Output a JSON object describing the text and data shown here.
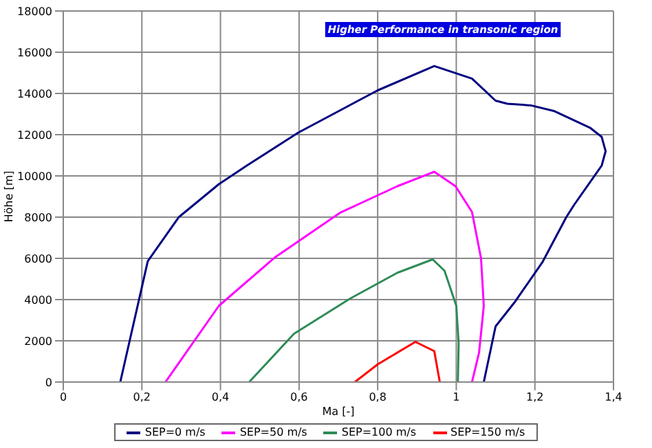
{
  "chart_data": {
    "type": "line",
    "xlabel": "Ma [-]",
    "ylabel": "Höhe [m]",
    "annotations": [
      "Higher Performance in transonic region"
    ],
    "xlim": [
      0,
      1.4
    ],
    "xticks": [
      {
        "value": 0,
        "label": "0"
      },
      {
        "value": 0.2,
        "label": "0,2"
      },
      {
        "value": 0.4,
        "label": "0,4"
      },
      {
        "value": 0.6,
        "label": "0,6"
      },
      {
        "value": 0.8,
        "label": "0,8"
      },
      {
        "value": 1,
        "label": "1"
      },
      {
        "value": 1.2,
        "label": "1,2"
      },
      {
        "value": 1.4,
        "label": "1,4"
      }
    ],
    "ylim": [
      0,
      18000
    ],
    "yticks": [
      0,
      2000,
      4000,
      6000,
      8000,
      10000,
      12000,
      14000,
      16000,
      18000
    ],
    "grid": true,
    "legend": "bottom",
    "marker": "none",
    "line_style": "solid",
    "series": [
      {
        "name": "SEP=0 m/s",
        "color": "#000080",
        "x": [
          0.145,
          0.215,
          0.294,
          0.396,
          0.467,
          0.598,
          0.8,
          0.944,
          1.04,
          1.1,
          1.13,
          1.19,
          1.25,
          1.34,
          1.37,
          1.38,
          1.37,
          1.3,
          1.28,
          1.22,
          1.15,
          1.1,
          1.07
        ],
        "values": [
          0,
          5860,
          8000,
          9600,
          10500,
          12100,
          14150,
          15330,
          14720,
          13650,
          13500,
          13420,
          13140,
          12340,
          11890,
          11200,
          10500,
          8600,
          8000,
          5840,
          3910,
          2700,
          0
        ]
      },
      {
        "name": "SEP=50 m/s",
        "color": "#ff00ff",
        "x": [
          0.26,
          0.396,
          0.54,
          0.706,
          0.85,
          0.944,
          0.998,
          1.04,
          1.063,
          1.07,
          1.058,
          1.04
        ],
        "values": [
          0,
          3700,
          6070,
          8230,
          9500,
          10200,
          9500,
          8250,
          6000,
          3700,
          1430,
          0
        ]
      },
      {
        "name": "SEP=100 m/s",
        "color": "#2e8b57",
        "x": [
          0.473,
          0.587,
          0.73,
          0.85,
          0.94,
          0.97,
          1.0,
          1.006,
          1.004
        ],
        "values": [
          0,
          2340,
          4050,
          5300,
          5950,
          5400,
          3700,
          1900,
          0
        ]
      },
      {
        "name": "SEP=150 m/s",
        "color": "#ff0000",
        "x": [
          0.742,
          0.8,
          0.896,
          0.944,
          0.958
        ],
        "values": [
          0,
          860,
          1950,
          1500,
          0
        ]
      }
    ]
  }
}
